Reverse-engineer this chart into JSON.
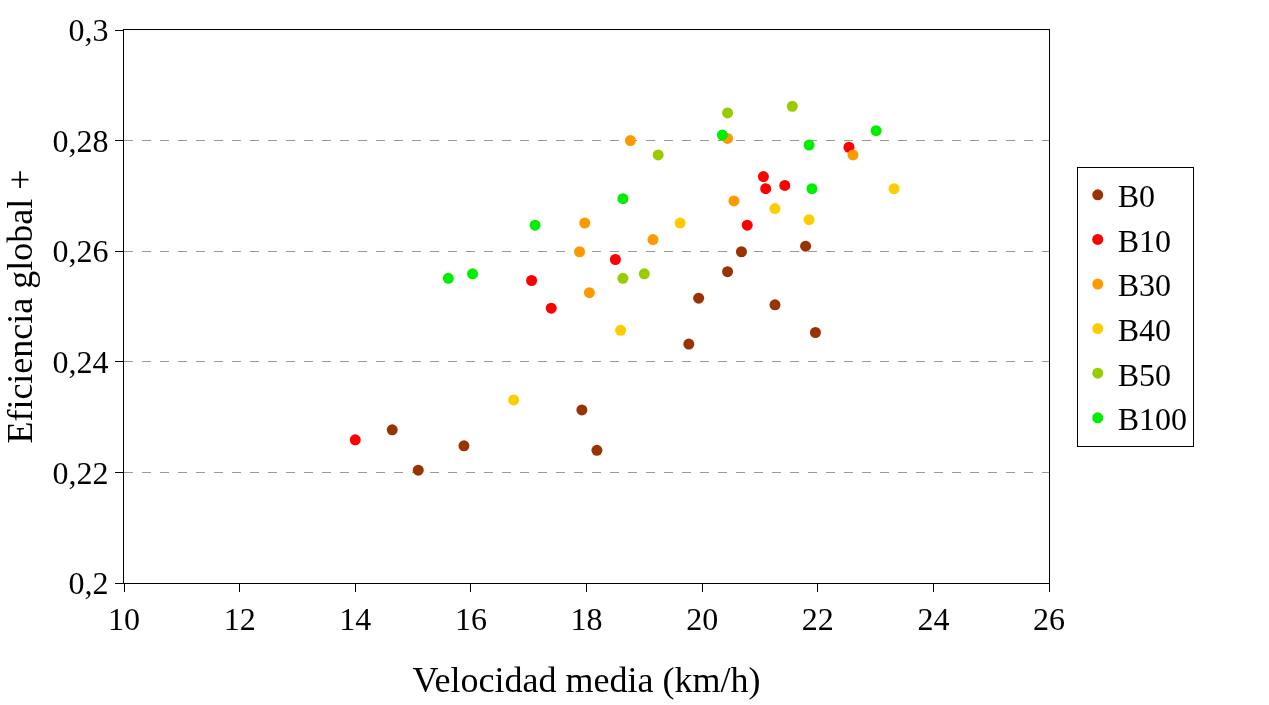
{
  "chart_data": {
    "type": "scatter",
    "xlabel": "Velocidad media (km/h)",
    "ylabel": "Eficiencia global +",
    "xlim": [
      10,
      26
    ],
    "xticks": [
      10,
      12,
      14,
      16,
      18,
      20,
      22,
      24,
      26
    ],
    "ylim": [
      0.2,
      0.3
    ],
    "yticks": [
      {
        "value": 0.2,
        "label": "0,2"
      },
      {
        "value": 0.22,
        "label": "0,22"
      },
      {
        "value": 0.24,
        "label": "0,24"
      },
      {
        "value": 0.26,
        "label": "0,26"
      },
      {
        "value": 0.28,
        "label": "0,28"
      },
      {
        "value": 0.3,
        "label": "0,3"
      }
    ],
    "grid": "y",
    "legend": "right",
    "marker": "circle",
    "series": [
      {
        "name": "B0",
        "color": "#993300",
        "x": [
          14.64,
          15.09,
          15.88,
          17.92,
          18.18,
          19.77,
          19.94,
          20.44,
          20.68,
          21.26,
          21.79,
          21.96
        ],
        "values": [
          0.2277,
          0.2204,
          0.2248,
          0.2313,
          0.224,
          0.2432,
          0.2515,
          0.2563,
          0.2599,
          0.2503,
          0.2609,
          0.2453
        ]
      },
      {
        "name": "B10",
        "color": "#ff0000",
        "x": [
          14.0,
          17.05,
          17.39,
          18.5,
          20.78,
          21.06,
          21.1,
          21.43,
          22.54
        ],
        "values": [
          0.2259,
          0.2547,
          0.2497,
          0.2585,
          0.2647,
          0.2735,
          0.2713,
          0.2719,
          0.2788
        ]
      },
      {
        "name": "B30",
        "color": "#ff9900",
        "x": [
          18.76,
          17.97,
          17.88,
          18.05,
          19.15,
          20.44,
          20.55,
          22.61
        ],
        "values": [
          0.28,
          0.2651,
          0.2599,
          0.2525,
          0.2621,
          0.2804,
          0.2691,
          0.2774
        ]
      },
      {
        "name": "B40",
        "color": "#ffcc00",
        "x": [
          16.74,
          18.59,
          19.62,
          21.26,
          21.85,
          23.32
        ],
        "values": [
          0.2331,
          0.2457,
          0.2651,
          0.2677,
          0.2657,
          0.2713
        ]
      },
      {
        "name": "B50",
        "color": "#99cc00",
        "x": [
          18.63,
          19.0,
          19.24,
          20.44,
          21.56
        ],
        "values": [
          0.2551,
          0.2559,
          0.2774,
          0.285,
          0.2862
        ]
      },
      {
        "name": "B100",
        "color": "#00ee00",
        "x": [
          15.61,
          16.03,
          17.11,
          18.63,
          20.35,
          21.85,
          21.9,
          23.01
        ],
        "values": [
          0.2551,
          0.2559,
          0.2647,
          0.2695,
          0.281,
          0.2792,
          0.2713,
          0.2818
        ]
      }
    ]
  }
}
